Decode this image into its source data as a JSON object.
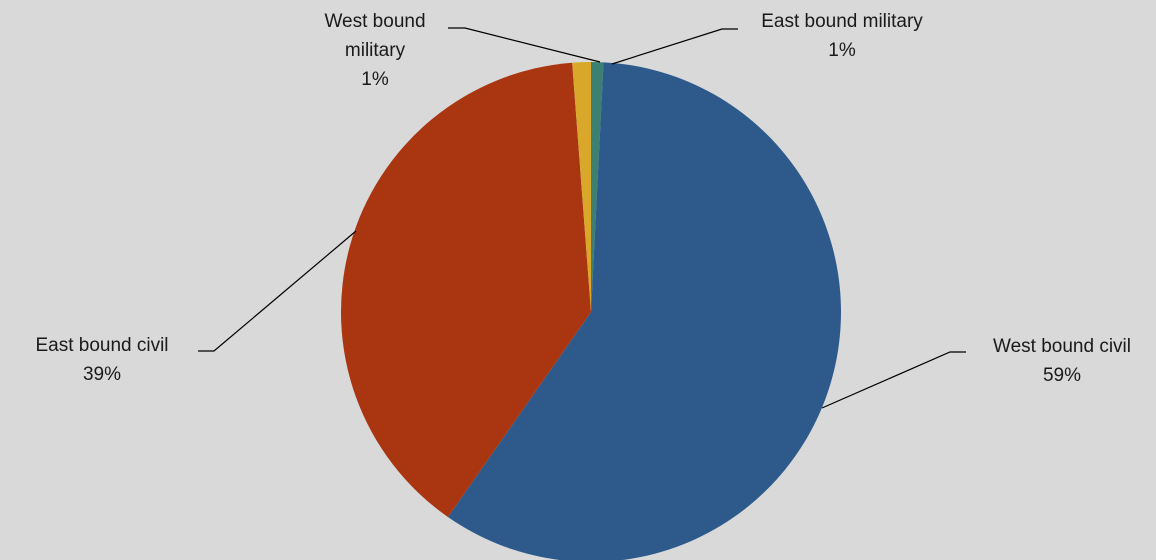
{
  "chart_data": {
    "type": "pie",
    "title": "",
    "start_angle_deg": 0,
    "direction": "clockwise",
    "slices": [
      {
        "name": "East bound military",
        "value": 0.8,
        "label": "East bound military",
        "percent_label": "1%",
        "color": "#3b8071"
      },
      {
        "name": "West bound civil",
        "value": 58.9,
        "label": "West bound civil",
        "percent_label": "59%",
        "color": "#2e5a8b"
      },
      {
        "name": "East bound civil",
        "value": 39.1,
        "label": "East bound civil",
        "percent_label": "39%",
        "color": "#a93611"
      },
      {
        "name": "West bound military",
        "value": 1.2,
        "label": "West bound military",
        "label_lines": [
          "West bound",
          "military"
        ],
        "percent_label": "1%",
        "color": "#d9a82b"
      }
    ],
    "legend": "none",
    "background_color": "#d9d9d9"
  }
}
